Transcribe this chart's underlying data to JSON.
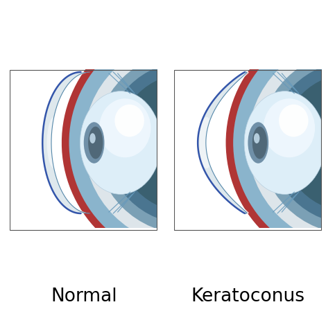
{
  "label_normal": "Normal",
  "label_keratoconus": "Keratoconus",
  "bg_color": "#ffffff",
  "label_fontsize": 19,
  "colors": {
    "sclera_red": "#b03535",
    "sclera_dark": "#7a2020",
    "blue_band": "#8ab4cc",
    "blue_band_dark": "#5588aa",
    "blue_line": "#3355aa",
    "white_cornea": "#e8edf0",
    "cornea_inner": "#d0dde5",
    "iris_mid": "#7ba0b5",
    "iris_dark": "#4a7590",
    "iris_center": "#3a6070",
    "lens_white": "#ddeef8",
    "lens_bright": "#f0f8ff",
    "lens_edge": "#b8d0e0",
    "pupil_grey": "#7090a8",
    "pupil_dark": "#506878",
    "pupil_hl": "#c0d8e8",
    "fiber_blue": "#6699bb",
    "box_border": "#555555"
  }
}
